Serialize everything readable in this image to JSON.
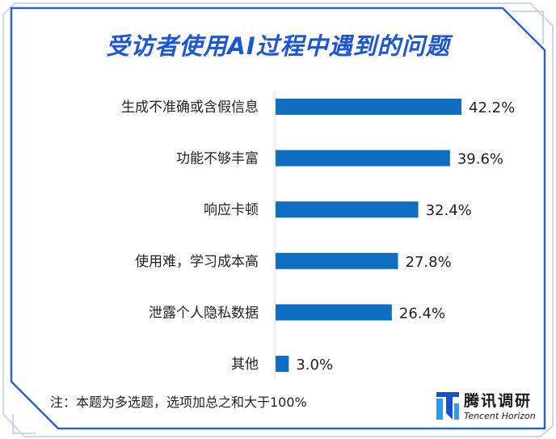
{
  "title": "受访者使用AI过程中遇到的问题",
  "note": "注：本题为多选题，选项加总之和大于100%",
  "logo": {
    "name_cn": "腾讯调研",
    "name_en": "Tencent Horizon"
  },
  "colors": {
    "bar": "#0e6fc2",
    "frame": "#2a64c8",
    "title": "#1a56d6"
  },
  "chart_data": {
    "type": "bar",
    "orientation": "horizontal",
    "title": "受访者使用AI过程中遇到的问题",
    "categories": [
      "生成不准确或含假信息",
      "功能不够丰富",
      "响应卡顿",
      "使用难，学习成本高",
      "泄露个人隐私数据",
      "其他"
    ],
    "values": [
      42.2,
      39.6,
      32.4,
      27.8,
      26.4,
      3.0
    ],
    "value_labels": [
      "42.2%",
      "39.6%",
      "32.4%",
      "27.8%",
      "26.4%",
      "3.0%"
    ],
    "unit": "%",
    "xlim": [
      0,
      45
    ],
    "grid": false,
    "legend": "none"
  }
}
